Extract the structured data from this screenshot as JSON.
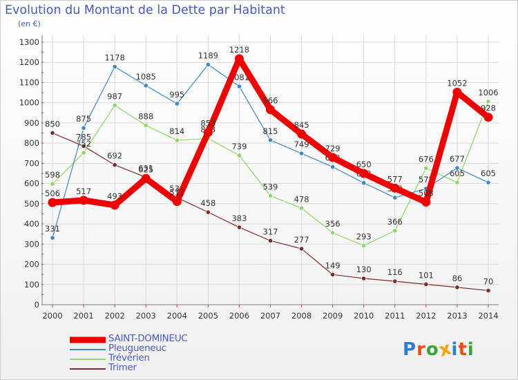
{
  "title": "Evolution du Montant de la Dette par Habitant",
  "subtitle": "(en €)",
  "logo": {
    "text": "Proxiti",
    "colors": [
      "#2f7fd0",
      "#e84e1b",
      "#3aa53a",
      "#f2a500",
      "#2f7fd0",
      "#e84e1b",
      "#3aa53a"
    ]
  },
  "chart_data": {
    "type": "line",
    "title": "Evolution du Montant de la Dette par Habitant",
    "subtitle": "(en €)",
    "x": [
      "2000",
      "2001",
      "2002",
      "2003",
      "2004",
      "2005",
      "2006",
      "2007",
      "2008",
      "2009",
      "2010",
      "2011",
      "2012",
      "2013",
      "2014"
    ],
    "ylim": [
      0,
      1300
    ],
    "yticks": [
      "0",
      "100",
      "200",
      "300",
      "400",
      "500",
      "600",
      "700",
      "800",
      "900",
      "1000",
      "1100",
      "1200",
      "1300"
    ],
    "grid": true,
    "legend_position": "bottom-left",
    "series": [
      {
        "name": "Trimer",
        "color": "#7a2a2a",
        "values": [
          850,
          785,
          692,
          631,
          530,
          458,
          383,
          317,
          277,
          149,
          130,
          116,
          101,
          86,
          70
        ],
        "labels": [
          "850",
          "785",
          "692",
          "631",
          "530",
          "458",
          "383",
          "317",
          "277",
          "149",
          "130",
          "116",
          "101",
          "86",
          "70"
        ]
      },
      {
        "name": "Trévérien",
        "color": "#8ed66a",
        "values": [
          598,
          752,
          987,
          888,
          814,
          823,
          739,
          539,
          478,
          356,
          293,
          366,
          676,
          605,
          1006
        ],
        "labels": [
          "598",
          "752",
          "987",
          "888",
          "814",
          "823",
          "739",
          "539",
          "478",
          "356",
          "293",
          "366",
          "676",
          "605",
          "1006"
        ]
      },
      {
        "name": "Pleugueneuc",
        "color": "#3f86c6",
        "values": [
          331,
          875,
          1178,
          1085,
          995,
          1189,
          1081,
          815,
          749,
          682,
          603,
          530,
          575,
          677,
          605
        ],
        "labels": [
          "331",
          "875",
          "1178",
          "1085",
          "995",
          "1189",
          "1081",
          "815",
          "749",
          "682",
          "603",
          "530",
          "575",
          "677",
          "605"
        ]
      },
      {
        "name": "SAINT-DOMINEUC",
        "color": "#ee0000",
        "values": [
          506,
          517,
          493,
          625,
          511,
          853,
          1218,
          966,
          845,
          729,
          650,
          577,
          508,
          1052,
          928
        ],
        "labels": [
          "506",
          "517",
          "493",
          "625",
          "511",
          "853",
          "1218",
          "966",
          "845",
          "729",
          "650",
          "577",
          "508",
          "1052",
          "928"
        ]
      }
    ],
    "legend": [
      "SAINT-DOMINEUC",
      "Pleugueneuc",
      "Trévérien",
      "Trimer"
    ]
  }
}
